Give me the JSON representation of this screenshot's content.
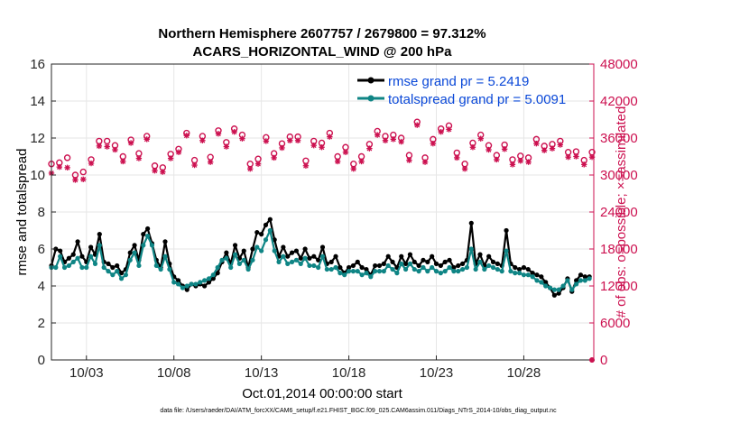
{
  "chart_data": {
    "type": "line",
    "title_line1": "Northern Hemisphere 2607757 / 2679800 = 97.312%",
    "title_line2": "ACARS_HORIZONTAL_WIND @ 200 hPa",
    "xlabel": "Oct.01,2014 00:00:00 start",
    "ylabel_left": "rmse and totalspread",
    "ylabel_right": "# of obs: o=possible; ×=assimilated",
    "footer": "data file: /Users/raeder/DAI/ATM_forcXX/CAM6_setup/f.e21.FHIST_BGC.f09_025.CAM6assim.011/Diags_NTrS_2014-10/obs_diag_output.nc",
    "x_tick_labels": [
      "10/03",
      "10/08",
      "10/13",
      "10/18",
      "10/23",
      "10/28"
    ],
    "x_ticks_day": [
      3,
      8,
      13,
      18,
      23,
      28
    ],
    "xlim_day": [
      1.0,
      32.0
    ],
    "ylim_left": [
      0,
      16
    ],
    "y_ticks_left": [
      "0",
      "2",
      "4",
      "6",
      "8",
      "10",
      "12",
      "14",
      "16"
    ],
    "ylim_right": [
      0,
      48000
    ],
    "y_ticks_right": [
      "0",
      "6000",
      "12000",
      "18000",
      "24000",
      "30000",
      "36000",
      "42000",
      "48000"
    ],
    "grid": true,
    "legend_position": "top-right",
    "colors": {
      "rmse": "#000000",
      "totalspread": "#0f8585",
      "obs": "#cc1150",
      "right_axis": "#cc1150",
      "legend_text": "#0a48d8"
    },
    "series": [
      {
        "name": "rmse grand pr = 5.2419",
        "x_day": [
          1.0,
          1.25,
          1.5,
          1.75,
          2.0,
          2.25,
          2.5,
          2.75,
          3.0,
          3.25,
          3.5,
          3.75,
          4.0,
          4.25,
          4.5,
          4.75,
          5.0,
          5.25,
          5.5,
          5.75,
          6.0,
          6.25,
          6.5,
          6.75,
          7.0,
          7.25,
          7.5,
          7.75,
          8.0,
          8.25,
          8.5,
          8.75,
          9.0,
          9.25,
          9.5,
          9.75,
          10.0,
          10.25,
          10.5,
          10.75,
          11.0,
          11.25,
          11.5,
          11.75,
          12.0,
          12.25,
          12.5,
          12.75,
          13.0,
          13.25,
          13.5,
          13.75,
          14.0,
          14.25,
          14.5,
          14.75,
          15.0,
          15.25,
          15.5,
          15.75,
          16.0,
          16.25,
          16.5,
          16.75,
          17.0,
          17.25,
          17.5,
          17.75,
          18.0,
          18.25,
          18.5,
          18.75,
          19.0,
          19.25,
          19.5,
          19.75,
          20.0,
          20.25,
          20.5,
          20.75,
          21.0,
          21.25,
          21.5,
          21.75,
          22.0,
          22.25,
          22.5,
          22.75,
          23.0,
          23.25,
          23.5,
          23.75,
          24.0,
          24.25,
          24.5,
          24.75,
          25.0,
          25.25,
          25.5,
          25.75,
          26.0,
          26.25,
          26.5,
          26.75,
          27.0,
          27.25,
          27.5,
          27.75,
          28.0,
          28.25,
          28.5,
          28.75,
          29.0,
          29.25,
          29.5,
          29.75,
          30.0,
          30.25,
          30.5,
          30.75,
          31.0,
          31.25,
          31.5,
          31.75
        ],
        "values": [
          5.1,
          6.0,
          5.9,
          5.3,
          5.5,
          5.7,
          6.4,
          5.6,
          5.3,
          6.1,
          5.7,
          6.8,
          5.3,
          5.2,
          5.0,
          5.1,
          4.7,
          4.9,
          5.8,
          6.2,
          5.4,
          6.8,
          7.1,
          6.3,
          5.4,
          5.0,
          6.4,
          5.2,
          4.5,
          4.3,
          4.0,
          3.8,
          4.1,
          4.0,
          4.1,
          4.0,
          4.2,
          4.4,
          4.7,
          5.3,
          5.8,
          5.2,
          6.2,
          5.5,
          5.9,
          5.0,
          6.0,
          6.9,
          6.8,
          7.3,
          7.6,
          6.5,
          5.6,
          6.1,
          5.6,
          5.8,
          5.9,
          5.5,
          6.0,
          5.5,
          5.6,
          5.4,
          6.1,
          5.2,
          5.3,
          5.6,
          5.0,
          4.7,
          5.0,
          5.1,
          5.3,
          5.0,
          4.9,
          4.6,
          5.1,
          5.1,
          5.2,
          5.6,
          5.3,
          5.0,
          5.6,
          5.2,
          5.7,
          5.3,
          5.1,
          5.4,
          5.3,
          5.6,
          5.2,
          5.1,
          5.3,
          5.4,
          5.0,
          5.1,
          5.2,
          5.4,
          7.4,
          5.2,
          5.7,
          5.1,
          5.6,
          5.3,
          5.2,
          5.1,
          7.0,
          5.2,
          5.0,
          4.9,
          5.0,
          4.9,
          4.7,
          4.6,
          4.5,
          4.2,
          3.9,
          3.5,
          3.6,
          3.9,
          4.4,
          3.7,
          4.3,
          4.6,
          4.5,
          4.5
        ],
        "color": "#000000"
      },
      {
        "name": "totalspread grand pr = 5.0091",
        "x_day": [
          1.0,
          1.25,
          1.5,
          1.75,
          2.0,
          2.25,
          2.5,
          2.75,
          3.0,
          3.25,
          3.5,
          3.75,
          4.0,
          4.25,
          4.5,
          4.75,
          5.0,
          5.25,
          5.5,
          5.75,
          6.0,
          6.25,
          6.5,
          6.75,
          7.0,
          7.25,
          7.5,
          7.75,
          8.0,
          8.25,
          8.5,
          8.75,
          9.0,
          9.25,
          9.5,
          9.75,
          10.0,
          10.25,
          10.5,
          10.75,
          11.0,
          11.25,
          11.5,
          11.75,
          12.0,
          12.25,
          12.5,
          12.75,
          13.0,
          13.25,
          13.5,
          13.75,
          14.0,
          14.25,
          14.5,
          14.75,
          15.0,
          15.25,
          15.5,
          15.75,
          16.0,
          16.25,
          16.5,
          16.75,
          17.0,
          17.25,
          17.5,
          17.75,
          18.0,
          18.25,
          18.5,
          18.75,
          19.0,
          19.25,
          19.5,
          19.75,
          20.0,
          20.25,
          20.5,
          20.75,
          21.0,
          21.25,
          21.5,
          21.75,
          22.0,
          22.25,
          22.5,
          22.75,
          23.0,
          23.25,
          23.5,
          23.75,
          24.0,
          24.25,
          24.5,
          24.75,
          25.0,
          25.25,
          25.5,
          25.75,
          26.0,
          26.25,
          26.5,
          26.75,
          27.0,
          27.25,
          27.5,
          27.75,
          28.0,
          28.25,
          28.5,
          28.75,
          29.0,
          29.25,
          29.5,
          29.75,
          30.0,
          30.25,
          30.5,
          30.75,
          31.0,
          31.25,
          31.5,
          31.75
        ],
        "values": [
          5.0,
          5.0,
          5.6,
          5.0,
          5.1,
          5.3,
          5.5,
          5.0,
          5.0,
          5.6,
          5.2,
          6.2,
          5.0,
          4.8,
          4.6,
          4.8,
          4.4,
          4.6,
          5.4,
          5.8,
          5.1,
          6.2,
          6.7,
          6.2,
          5.1,
          4.9,
          5.6,
          4.9,
          4.2,
          4.1,
          3.9,
          4.0,
          4.1,
          4.1,
          4.2,
          4.3,
          4.4,
          4.6,
          5.0,
          5.4,
          5.5,
          5.0,
          5.7,
          5.2,
          5.4,
          4.9,
          5.4,
          6.1,
          5.9,
          6.5,
          7.0,
          5.9,
          5.3,
          5.6,
          5.2,
          5.3,
          5.4,
          5.2,
          5.5,
          5.1,
          5.1,
          5.0,
          5.6,
          4.9,
          4.9,
          5.0,
          4.7,
          4.6,
          4.8,
          4.8,
          4.8,
          4.6,
          4.7,
          4.5,
          4.8,
          4.8,
          4.8,
          5.1,
          4.9,
          4.7,
          5.2,
          4.9,
          5.2,
          4.9,
          4.8,
          5.0,
          4.8,
          5.0,
          4.8,
          4.7,
          4.8,
          5.0,
          4.8,
          4.8,
          4.9,
          5.0,
          6.0,
          4.9,
          5.3,
          4.9,
          5.1,
          5.0,
          4.9,
          4.8,
          5.9,
          4.8,
          4.7,
          4.7,
          4.6,
          4.6,
          4.5,
          4.3,
          4.2,
          4.0,
          3.9,
          3.8,
          3.8,
          4.0,
          4.3,
          3.8,
          4.1,
          4.3,
          4.3,
          4.4
        ],
        "color": "#0f8585"
      }
    ],
    "obs_possible": [
      31800,
      32000,
      32800,
      30000,
      30500,
      32500,
      35500,
      35500,
      34800,
      33000,
      35700,
      33500,
      36300,
      31500,
      31200,
      33400,
      34200,
      36800,
      32400,
      36300,
      32900,
      37200,
      35300,
      37500,
      36500,
      31800,
      32600,
      36100,
      33500,
      35100,
      36200,
      36200,
      32300,
      35500,
      35200,
      36800,
      33000,
      34500,
      31800,
      33000,
      35000,
      37100,
      36300,
      36500,
      36000,
      33200,
      38600,
      32800,
      35800,
      37500,
      38000,
      33600,
      31800,
      35200,
      36500,
      34800,
      33200,
      34900,
      32500,
      33100,
      32800,
      35800,
      34700,
      35000,
      35500,
      33700,
      33800,
      32400,
      33700
    ],
    "obs_assimilated": [
      30300,
      31300,
      31200,
      29200,
      29300,
      31900,
      34700,
      34600,
      34100,
      32200,
      35200,
      32700,
      35800,
      30700,
      30500,
      32700,
      33700,
      36400,
      31600,
      35600,
      32100,
      36700,
      34600,
      37000,
      35900,
      31000,
      31800,
      35500,
      32800,
      34400,
      35600,
      35600,
      31500,
      34800,
      34500,
      36200,
      32200,
      33700,
      31000,
      32200,
      34300,
      36500,
      35600,
      35800,
      35400,
      32400,
      38100,
      32100,
      35100,
      37000,
      37400,
      32800,
      31000,
      34500,
      35900,
      34100,
      32500,
      34200,
      31700,
      32300,
      32100,
      35100,
      34000,
      34300,
      34900,
      32900,
      33000,
      31700,
      32900
    ]
  }
}
